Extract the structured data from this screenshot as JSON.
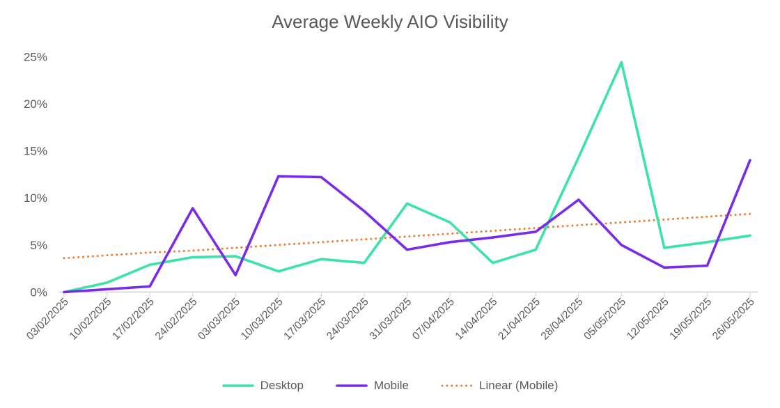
{
  "chart_data": {
    "type": "line",
    "title": "Average Weekly AIO Visibility",
    "categories": [
      "03/02/2025",
      "10/02/2025",
      "17/02/2025",
      "24/02/2025",
      "03/03/2025",
      "10/03/2025",
      "17/03/2025",
      "24/03/2025",
      "31/03/2025",
      "07/04/2025",
      "14/04/2025",
      "21/04/2025",
      "28/04/2025",
      "05/05/2025",
      "12/05/2025",
      "19/05/2025",
      "26/05/2025"
    ],
    "series": [
      {
        "name": "Desktop",
        "color": "#3BE3A9",
        "style": "solid",
        "values": [
          0.0,
          1.0,
          2.9,
          3.7,
          3.8,
          2.2,
          3.5,
          3.1,
          9.4,
          7.4,
          3.1,
          4.5,
          14.3,
          24.4,
          4.7,
          5.3,
          6.0
        ]
      },
      {
        "name": "Mobile",
        "color": "#7A2BE8",
        "style": "solid",
        "values": [
          0.0,
          0.3,
          0.6,
          8.9,
          1.8,
          12.3,
          12.2,
          8.6,
          4.5,
          5.3,
          5.8,
          6.4,
          9.8,
          5.0,
          2.6,
          2.8,
          14.0
        ]
      },
      {
        "name": "Linear (Mobile)",
        "color": "#ED7D31",
        "style": "dotted",
        "trendline": true,
        "values": [
          3.6,
          3.9,
          4.2,
          4.4,
          4.7,
          5.0,
          5.3,
          5.6,
          5.9,
          6.2,
          6.5,
          6.8,
          7.1,
          7.4,
          7.7,
          8.0,
          8.3
        ]
      }
    ],
    "ylim": [
      0,
      25
    ],
    "ytick_step": 5,
    "ytick_labels": [
      "0%",
      "5%",
      "10%",
      "15%",
      "20%",
      "25%"
    ],
    "grid": false,
    "legend_position": "bottom",
    "x_label_rotation": -45,
    "axis_text_color": "#595959",
    "axis_line_color": "#D6D6D6"
  }
}
